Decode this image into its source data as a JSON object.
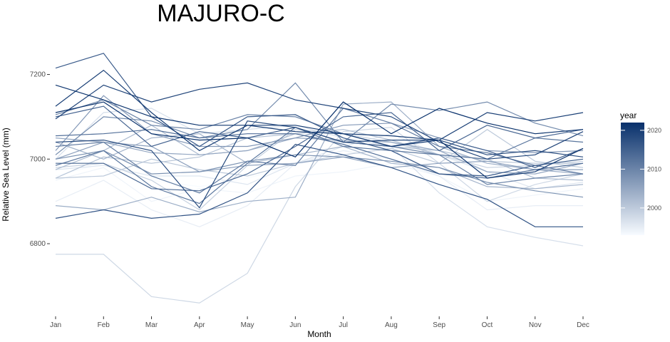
{
  "chart_data": {
    "type": "line",
    "title": "MAJURO-C",
    "xlabel": "Month",
    "ylabel": "Relative Sea Level (mm)",
    "categories": [
      "Jan",
      "Feb",
      "Mar",
      "Apr",
      "May",
      "Jun",
      "Jul",
      "Aug",
      "Sep",
      "Oct",
      "Nov",
      "Dec"
    ],
    "ylim": [
      6635,
      7275
    ],
    "yticks": [
      6800,
      7000,
      7200
    ],
    "grid": false,
    "legend": {
      "title": "year",
      "position": "right",
      "range": [
        1993,
        2022
      ],
      "ticks": [
        2000,
        2010,
        2020
      ],
      "color_low": "#f7fbff",
      "color_high": "#08306b"
    },
    "series": [
      {
        "year": 1993,
        "values": [
          6960,
          6990,
          6950,
          6935,
          6955,
          6985,
          7020,
          7030,
          7010,
          6990,
          6975,
          6970
        ]
      },
      {
        "year": 1994,
        "values": [
          6950,
          6980,
          6900,
          6930,
          6920,
          6960,
          6970,
          6990,
          6960,
          6900,
          6915,
          6930
        ]
      },
      {
        "year": 1995,
        "values": [
          6900,
          6950,
          6880,
          6840,
          6890,
          6990,
          7020,
          7000,
          6960,
          6880,
          6890,
          6890
        ]
      },
      {
        "year": 1996,
        "values": [
          6975,
          6985,
          6960,
          6960,
          6940,
          6990,
          7030,
          7060,
          7010,
          6970,
          6930,
          6945
        ]
      },
      {
        "year": 1997,
        "values": [
          7000,
          7110,
          7120,
          7060,
          7070,
          7080,
          7050,
          7030,
          6920,
          6840,
          6815,
          6795
        ]
      },
      {
        "year": 1998,
        "values": [
          6775,
          6775,
          6675,
          6660,
          6730,
          6935,
          7065,
          7075,
          6990,
          6900,
          6940,
          6965
        ]
      },
      {
        "year": 1999,
        "values": [
          6980,
          6990,
          6950,
          6880,
          6985,
          7070,
          7060,
          7040,
          7010,
          6980,
          6985,
          6995
        ]
      },
      {
        "year": 2000,
        "values": [
          6955,
          6960,
          7000,
          6975,
          6960,
          6990,
          7010,
          7025,
          6990,
          7070,
          6995,
          6980
        ]
      },
      {
        "year": 2001,
        "values": [
          6955,
          7005,
          6990,
          7005,
          7050,
          7060,
          7040,
          7030,
          7020,
          6995,
          6990,
          6990
        ]
      },
      {
        "year": 2002,
        "values": [
          6975,
          7020,
          7080,
          7010,
          7020,
          7060,
          7070,
          7045,
          7010,
          7000,
          6955,
          6950
        ]
      },
      {
        "year": 2003,
        "values": [
          7040,
          7000,
          7050,
          7060,
          6990,
          7010,
          7030,
          6990,
          6980,
          6935,
          6930,
          6940
        ]
      },
      {
        "year": 2004,
        "values": [
          6890,
          6880,
          6910,
          6875,
          6900,
          6910,
          7130,
          7135,
          7030,
          6990,
          6975,
          6965
        ]
      },
      {
        "year": 2005,
        "values": [
          7050,
          7040,
          7015,
          7010,
          7020,
          7050,
          7045,
          7040,
          7020,
          6970,
          6965,
          6990
        ]
      },
      {
        "year": 2006,
        "values": [
          7000,
          7040,
          7030,
          6970,
          6985,
          6990,
          7005,
          6980,
          6990,
          6995,
          6975,
          6975
        ]
      },
      {
        "year": 2007,
        "values": [
          7020,
          7150,
          7060,
          7030,
          7030,
          7050,
          7080,
          7085,
          7050,
          7020,
          7015,
          7020
        ]
      },
      {
        "year": 2008,
        "values": [
          7000,
          7020,
          6965,
          6970,
          6995,
          7010,
          7005,
          6995,
          6980,
          6945,
          6925,
          6910
        ]
      },
      {
        "year": 2009,
        "values": [
          7010,
          7100,
          7090,
          7050,
          7070,
          7180,
          7040,
          7130,
          7115,
          7135,
          7085,
          7055
        ]
      },
      {
        "year": 2010,
        "values": [
          7105,
          7140,
          7080,
          7070,
          7105,
          7100,
          7060,
          7030,
          7010,
          6940,
          6955,
          6965
        ]
      },
      {
        "year": 2011,
        "values": [
          7030,
          7040,
          6960,
          6920,
          6995,
          6985,
          7120,
          7085,
          7030,
          7015,
          6985,
          6965
        ]
      },
      {
        "year": 2012,
        "values": [
          6985,
          7020,
          6935,
          6895,
          6990,
          7075,
          7030,
          7020,
          7010,
          7000,
          7050,
          7040
        ]
      },
      {
        "year": 2013,
        "values": [
          7055,
          7060,
          7070,
          7050,
          7060,
          7060,
          7035,
          7000,
          6965,
          6955,
          6975,
          6990
        ]
      },
      {
        "year": 2014,
        "values": [
          6990,
          6990,
          6930,
          6925,
          6965,
          7030,
          7100,
          7110,
          7020,
          7080,
          7050,
          7070
        ]
      },
      {
        "year": 2015,
        "values": [
          7100,
          7125,
          7030,
          7065,
          7050,
          7075,
          7040,
          7030,
          7050,
          7020,
          6980,
          7025
        ]
      },
      {
        "year": 2016,
        "values": [
          7215,
          7250,
          7100,
          7030,
          7100,
          7105,
          7050,
          7020,
          6965,
          6960,
          6985,
          7000
        ]
      },
      {
        "year": 2017,
        "values": [
          6860,
          6880,
          6860,
          6870,
          6920,
          7035,
          7010,
          6980,
          6940,
          6905,
          6840,
          6840
        ]
      },
      {
        "year": 2018,
        "values": [
          7040,
          7045,
          7020,
          6885,
          7090,
          7075,
          7040,
          7045,
          7045,
          7010,
          7020,
          7005
        ]
      },
      {
        "year": 2019,
        "values": [
          7095,
          7175,
          7135,
          7165,
          7180,
          7140,
          7120,
          7100,
          7040,
          7000,
          7010,
          7065
        ]
      },
      {
        "year": 2020,
        "values": [
          7125,
          7210,
          7110,
          7020,
          7080,
          7080,
          7060,
          7055,
          7045,
          7110,
          7090,
          7110
        ]
      },
      {
        "year": 2021,
        "values": [
          7175,
          7140,
          7100,
          7080,
          7080,
          7065,
          7060,
          7030,
          7045,
          6955,
          6970,
          7025
        ]
      },
      {
        "year": 2022,
        "values": [
          7110,
          7135,
          7060,
          7045,
          7050,
          7005,
          7135,
          7060,
          7120,
          7085,
          7060,
          7070
        ]
      }
    ]
  }
}
